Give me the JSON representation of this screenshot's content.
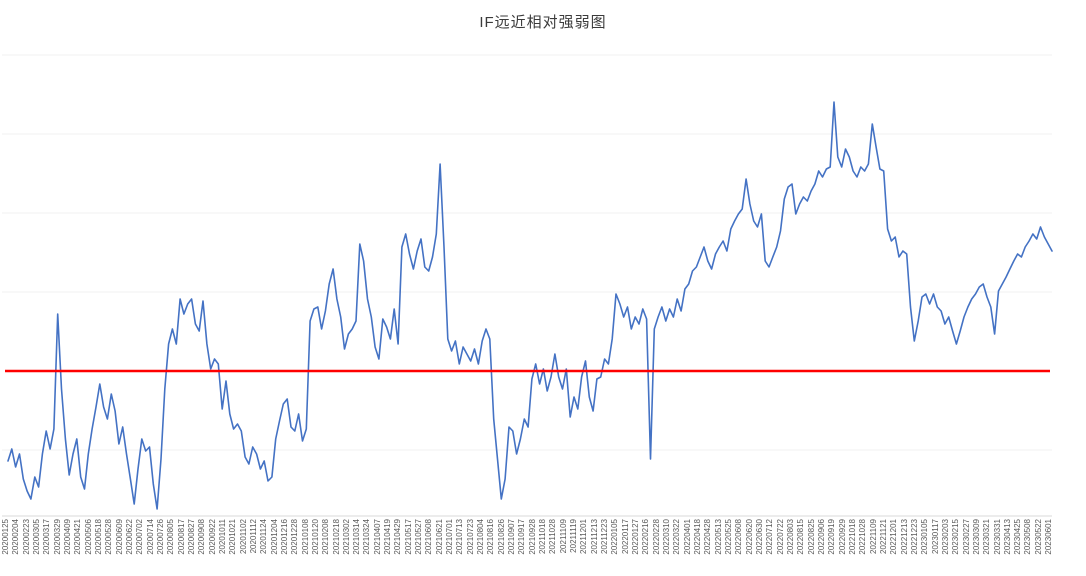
{
  "page": {
    "title": "IF远近相对强弱图"
  },
  "chart_data": {
    "type": "line",
    "title": "IF远近相对强弱图",
    "xlabel": "",
    "ylabel": "",
    "legend": "none",
    "grid": "faint-horizontal",
    "x_tick_rotation": 90,
    "ylim": [
      0.955,
      1.095
    ],
    "x_range": [
      "20200125",
      "20230601"
    ],
    "reference_line": {
      "value": 1.0,
      "color": "#ff0000"
    },
    "colors": {
      "series": "#4472c4",
      "reference": "#ff0000",
      "axis": "#d9d9d9",
      "grid": "#f0f0f0",
      "tick_text": "#595959",
      "title_text": "#3b3b3b"
    },
    "categories": [
      "20200125",
      "20200204",
      "20200223",
      "20200305",
      "20200317",
      "20200329",
      "20200409",
      "20200421",
      "20200506",
      "20200518",
      "20200528",
      "20200609",
      "20200622",
      "20200702",
      "20200714",
      "20200726",
      "20200805",
      "20200817",
      "20200827",
      "20200908",
      "20200922",
      "20201011",
      "20201021",
      "20201102",
      "20201112",
      "20201124",
      "20201204",
      "20201216",
      "20201228",
      "20210108",
      "20210120",
      "20210208",
      "20210218",
      "20210302",
      "20210314",
      "20210324",
      "20210407",
      "20210419",
      "20210429",
      "20210517",
      "20210527",
      "20210608",
      "20210621",
      "20210701",
      "20210713",
      "20210723",
      "20210804",
      "20210816",
      "20210826",
      "20210907",
      "20210917",
      "20210928",
      "20211018",
      "20211028",
      "20211109",
      "20211119",
      "20211201",
      "20211213",
      "20211223",
      "20220105",
      "20220117",
      "20220127",
      "20220216",
      "20220228",
      "20220310",
      "20220322",
      "20220401",
      "20220418",
      "20220428",
      "20220513",
      "20220525",
      "20220608",
      "20220620",
      "20220630",
      "20220712",
      "20220722",
      "20220803",
      "20220815",
      "20220825",
      "20220906",
      "20220919",
      "20220929",
      "20221018",
      "20221028",
      "20221109",
      "20221121",
      "20221201",
      "20221213",
      "20221223",
      "20230105",
      "20230117",
      "20230203",
      "20230215",
      "20230227",
      "20230309",
      "20230321",
      "20230331",
      "20230413",
      "20230425",
      "20230508",
      "20230522",
      "20230601"
    ],
    "series": [
      {
        "name": "IF远近相对强弱",
        "color": "#4472c4",
        "values": [
          0.973,
          0.9766,
          0.9712,
          0.9751,
          0.9676,
          0.964,
          0.9616,
          0.9682,
          0.9652,
          0.9751,
          0.982,
          0.9766,
          0.9826,
          1.0171,
          0.9946,
          0.9796,
          0.9688,
          0.9751,
          0.9796,
          0.9682,
          0.9646,
          0.9751,
          0.9826,
          0.9892,
          0.9961,
          0.9892,
          0.9856,
          0.9931,
          0.988,
          0.9781,
          0.9832,
          0.9751,
          0.9676,
          0.9601,
          0.9706,
          0.9796,
          0.976,
          0.9772,
          0.9661,
          0.9586,
          0.9736,
          0.9946,
          1.0081,
          1.0126,
          1.0081,
          1.0216,
          1.0171,
          1.0201,
          1.0216,
          1.0141,
          1.012,
          1.021,
          1.0081,
          1.0006,
          1.0036,
          1.0021,
          0.9886,
          0.997,
          0.9871,
          0.9826,
          0.9841,
          0.982,
          0.9742,
          0.9721,
          0.9772,
          0.9751,
          0.9706,
          0.973,
          0.967,
          0.9682,
          0.9796,
          0.985,
          0.9901,
          0.9916,
          0.9832,
          0.982,
          0.9871,
          0.979,
          0.9826,
          1.015,
          1.0186,
          1.0192,
          1.0126,
          1.018,
          1.0261,
          1.0306,
          1.0216,
          1.0162,
          1.0066,
          1.0111,
          1.0126,
          1.015,
          1.0381,
          1.033,
          1.0216,
          1.0162,
          1.0072,
          1.0036,
          1.0156,
          1.0132,
          1.0096,
          1.0186,
          1.0081,
          1.0372,
          1.0411,
          1.0351,
          1.0306,
          1.036,
          1.0396,
          1.0312,
          1.03,
          1.0342,
          1.0411,
          1.0621,
          1.0372,
          1.0096,
          1.006,
          1.009,
          1.0021,
          1.0072,
          1.0051,
          1.003,
          1.0066,
          1.0021,
          1.009,
          1.0126,
          1.0096,
          0.9856,
          0.9736,
          0.9616,
          0.9676,
          0.9832,
          0.982,
          0.9751,
          0.9796,
          0.9856,
          0.9832,
          0.9976,
          1.0021,
          0.9961,
          1.0006,
          0.994,
          0.9982,
          1.0051,
          0.9982,
          0.9946,
          1.0006,
          0.9862,
          0.9922,
          0.9886,
          0.9982,
          1.003,
          0.9922,
          0.988,
          0.9976,
          0.9982,
          1.0036,
          1.0021,
          1.0096,
          1.0231,
          1.0201,
          1.0162,
          1.0192,
          1.0126,
          1.0162,
          1.0141,
          1.0186,
          1.0156,
          0.9736,
          1.0126,
          1.0162,
          1.0192,
          1.015,
          1.0186,
          1.0162,
          1.0216,
          1.018,
          1.0246,
          1.0261,
          1.03,
          1.0312,
          1.0342,
          1.0372,
          1.033,
          1.0306,
          1.0351,
          1.0372,
          1.039,
          1.036,
          1.0426,
          1.045,
          1.0471,
          1.0486,
          1.0576,
          1.0501,
          1.045,
          1.0432,
          1.0471,
          1.033,
          1.0312,
          1.0342,
          1.0372,
          1.042,
          1.0516,
          1.0552,
          1.0561,
          1.0471,
          1.0501,
          1.0522,
          1.051,
          1.054,
          1.0561,
          1.06,
          1.0582,
          1.0606,
          1.0612,
          1.0807,
          1.0642,
          1.0612,
          1.0666,
          1.0642,
          1.06,
          1.0582,
          1.0612,
          1.06,
          1.0621,
          1.0741,
          1.0672,
          1.0606,
          1.06,
          1.0426,
          1.039,
          1.0402,
          1.0342,
          1.036,
          1.0351,
          1.0192,
          1.009,
          1.015,
          1.0222,
          1.0231,
          1.0201,
          1.0231,
          1.0192,
          1.018,
          1.0141,
          1.0162,
          1.012,
          1.0081,
          1.012,
          1.0162,
          1.0192,
          1.0216,
          1.0231,
          1.0252,
          1.0261,
          1.0222,
          1.0192,
          1.0111,
          1.024,
          1.0261,
          1.0282,
          1.0306,
          1.033,
          1.0351,
          1.0342,
          1.0372,
          1.039,
          1.0411,
          1.0396,
          1.0432,
          1.0402,
          1.0381,
          1.036
        ]
      }
    ]
  }
}
